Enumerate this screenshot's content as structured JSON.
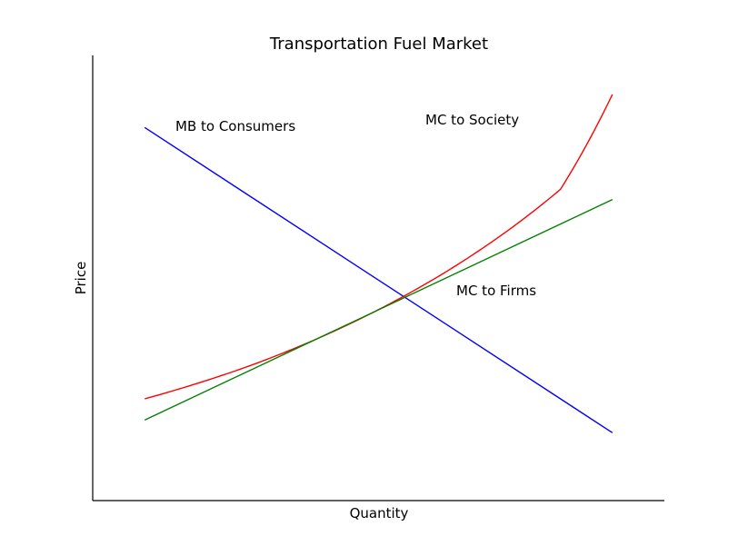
{
  "chart_data": {
    "type": "line",
    "title": "Transportation Fuel Market",
    "xlabel": "Quantity",
    "ylabel": "Price",
    "xlim": [
      0,
      11
    ],
    "ylim": [
      0,
      10.5
    ],
    "grid": false,
    "legend": "none",
    "series": [
      {
        "name": "MB to Consumers",
        "color": "#0000ff",
        "x": [
          1,
          10
        ],
        "y": [
          8.8,
          1.6
        ]
      },
      {
        "name": "MC to Society",
        "color": "#ff0000",
        "x": [
          1,
          2,
          3,
          4,
          5,
          6,
          7,
          8,
          9,
          10
        ],
        "y": [
          2.4,
          2.76,
          3.17,
          3.65,
          4.2,
          4.83,
          5.55,
          6.38,
          7.34,
          9.58
        ]
      },
      {
        "name": "MC to Firms",
        "color": "#008000",
        "x": [
          1,
          10
        ],
        "y": [
          1.9,
          7.1
        ]
      }
    ]
  }
}
